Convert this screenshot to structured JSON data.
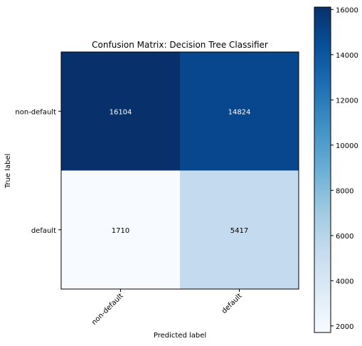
{
  "chart_data": {
    "type": "heatmap",
    "title": "Confusion Matrix: Decision Tree Classifier",
    "xlabel": "Predicted label",
    "ylabel": "True label",
    "x_categories": [
      "non-default",
      "default"
    ],
    "y_categories": [
      "non-default",
      "default"
    ],
    "values": [
      [
        16104,
        14824
      ],
      [
        1710,
        5417
      ]
    ],
    "colormap": "Blues",
    "colorbar": {
      "vmin": 1710,
      "vmax": 16104,
      "ticks": [
        2000,
        4000,
        6000,
        8000,
        10000,
        12000,
        14000,
        16000
      ]
    },
    "grid": false
  }
}
